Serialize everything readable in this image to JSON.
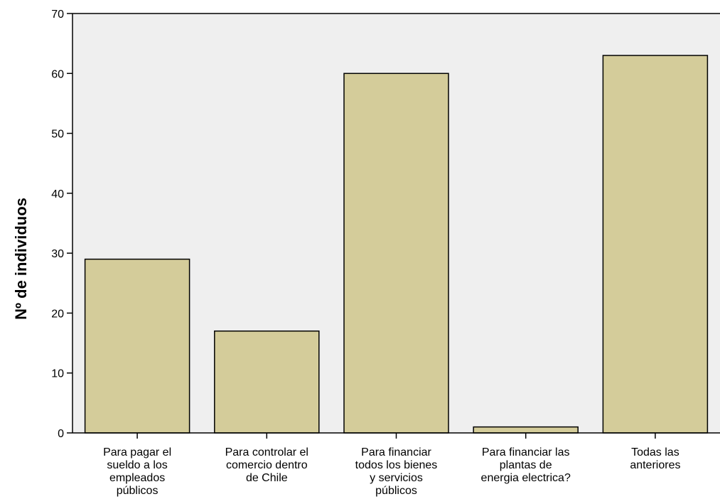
{
  "chart_data": {
    "type": "bar",
    "title": "",
    "xlabel": "",
    "ylabel": "Nº de individuos",
    "ylim": [
      0,
      70
    ],
    "yticks": [
      0,
      10,
      20,
      30,
      40,
      50,
      60,
      70
    ],
    "grid": false,
    "categories": [
      [
        "Para pagar el",
        "sueldo a los",
        "empleados",
        "públicos"
      ],
      [
        "Para controlar el",
        "comercio dentro",
        "de Chile"
      ],
      [
        "Para financiar",
        "todos los bienes",
        "y servicios",
        "públicos"
      ],
      [
        "Para financiar las",
        "plantas de",
        "energia electrica?"
      ],
      [
        "Todas las",
        "anteriores"
      ]
    ],
    "values": [
      29,
      17,
      60,
      1,
      63
    ],
    "colors": {
      "bar_fill": "#d4cc9a",
      "bar_stroke": "#000000",
      "plot_background": "#efefef",
      "axis": "#000000"
    }
  }
}
